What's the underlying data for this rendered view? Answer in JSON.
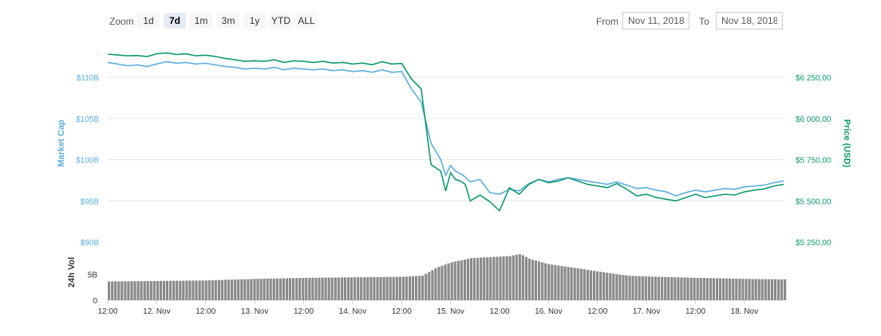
{
  "toolbar": {
    "zoom_label": "Zoom",
    "zoom_options": [
      "1d",
      "7d",
      "1m",
      "3m",
      "1y",
      "YTD",
      "ALL"
    ],
    "active_zoom": "7d",
    "from_label": "From",
    "from_value": "Nov 11, 2018",
    "to_label": "To",
    "to_value": "Nov 18, 2018"
  },
  "colors": {
    "market_cap": "#5aaee0",
    "price": "#0f9a6e",
    "volume": "#8a8a8a"
  },
  "chart_data": [
    {
      "type": "line",
      "x_ticks": [
        "12:00",
        "12. Nov",
        "12:00",
        "13. Nov",
        "12:00",
        "14. Nov",
        "12:00",
        "15. Nov",
        "12:00",
        "16. Nov",
        "12:00",
        "17. Nov",
        "12:00",
        "18. Nov"
      ],
      "left_axis": {
        "label": "Market Cap",
        "ticks": [
          "$110B",
          "$105B",
          "$100B",
          "$95B",
          "$90B"
        ],
        "range": [
          90,
          113
        ]
      },
      "right_axis": {
        "label": "Price (USD)",
        "ticks": [
          "$6 250,00",
          "$6 000,00",
          "$5 750,00",
          "$5 500,00",
          "$5 250,00"
        ],
        "range": [
          5250,
          6380
        ]
      },
      "series": [
        {
          "name": "Market Cap",
          "axis": "left",
          "x": [
            0,
            0.1,
            0.2,
            0.3,
            0.4,
            0.5,
            0.6,
            0.7,
            0.8,
            0.9,
            1.0,
            1.1,
            1.2,
            1.3,
            1.4,
            1.5,
            1.6,
            1.7,
            1.8,
            1.9,
            2.0,
            2.1,
            2.2,
            2.3,
            2.4,
            2.5,
            2.6,
            2.7,
            2.8,
            2.9,
            3.0,
            3.1,
            3.2,
            3.3,
            3.4,
            3.45,
            3.5,
            3.55,
            3.6,
            3.65,
            3.7,
            3.8,
            3.9,
            4.0,
            4.1,
            4.2,
            4.3,
            4.4,
            4.5,
            4.6,
            4.7,
            4.8,
            4.9,
            5.0,
            5.1,
            5.2,
            5.3,
            5.4,
            5.5,
            5.6,
            5.7,
            5.8,
            5.9,
            6.0,
            6.1,
            6.2,
            6.3,
            6.4,
            6.5,
            6.6,
            6.7,
            6.8,
            6.9
          ],
          "values": [
            111.8,
            111.6,
            111.4,
            111.5,
            111.3,
            111.6,
            111.9,
            111.7,
            111.8,
            111.6,
            111.7,
            111.5,
            111.3,
            111.2,
            111.0,
            111.1,
            111.0,
            111.2,
            110.9,
            111.1,
            111.0,
            110.9,
            111.0,
            110.8,
            110.9,
            110.7,
            110.8,
            110.6,
            110.9,
            110.6,
            110.7,
            108.6,
            107.0,
            102.0,
            100.0,
            98.1,
            99.3,
            98.6,
            98.3,
            97.9,
            97.3,
            97.6,
            96.0,
            95.8,
            96.4,
            96.2,
            97.1,
            97.6,
            97.3,
            97.6,
            97.8,
            97.6,
            97.4,
            97.2,
            97.0,
            97.3,
            96.9,
            96.5,
            96.6,
            96.3,
            96.1,
            95.6,
            96.0,
            96.3,
            96.1,
            96.3,
            96.5,
            96.4,
            96.7,
            96.8,
            96.9,
            97.2,
            97.4
          ]
        },
        {
          "name": "Price (USD)",
          "axis": "right",
          "x": [
            0,
            0.1,
            0.2,
            0.3,
            0.4,
            0.5,
            0.6,
            0.7,
            0.8,
            0.9,
            1.0,
            1.1,
            1.2,
            1.3,
            1.4,
            1.5,
            1.6,
            1.7,
            1.8,
            1.9,
            2.0,
            2.1,
            2.2,
            2.3,
            2.4,
            2.5,
            2.6,
            2.7,
            2.8,
            2.9,
            3.0,
            3.1,
            3.2,
            3.3,
            3.4,
            3.45,
            3.5,
            3.55,
            3.6,
            3.65,
            3.7,
            3.8,
            3.9,
            4.0,
            4.1,
            4.2,
            4.3,
            4.4,
            4.5,
            4.6,
            4.7,
            4.8,
            4.9,
            5.0,
            5.1,
            5.2,
            5.3,
            5.4,
            5.5,
            5.6,
            5.7,
            5.8,
            5.9,
            6.0,
            6.1,
            6.2,
            6.3,
            6.4,
            6.5,
            6.6,
            6.7,
            6.8,
            6.9
          ],
          "values": [
            6390,
            6385,
            6380,
            6382,
            6375,
            6392,
            6398,
            6388,
            6392,
            6380,
            6384,
            6376,
            6364,
            6356,
            6346,
            6350,
            6346,
            6356,
            6340,
            6350,
            6346,
            6340,
            6346,
            6336,
            6340,
            6330,
            6336,
            6326,
            6344,
            6330,
            6334,
            6240,
            6180,
            5720,
            5680,
            5560,
            5670,
            5630,
            5620,
            5600,
            5500,
            5535,
            5495,
            5440,
            5580,
            5540,
            5600,
            5630,
            5610,
            5620,
            5640,
            5620,
            5600,
            5590,
            5580,
            5605,
            5570,
            5530,
            5540,
            5520,
            5510,
            5500,
            5520,
            5540,
            5520,
            5530,
            5540,
            5535,
            5555,
            5565,
            5572,
            5590,
            5600
          ]
        }
      ]
    },
    {
      "type": "bar",
      "name": "24h Vol",
      "ylabel": "24h Vol",
      "ticks": [
        "5B",
        "0"
      ],
      "range": [
        0,
        9.5
      ],
      "x": [
        0,
        0.5,
        1.0,
        1.5,
        2.0,
        2.5,
        3.0,
        3.2,
        3.35,
        3.5,
        3.7,
        3.9,
        4.1,
        4.2,
        4.3,
        4.5,
        4.8,
        5.0,
        5.3,
        5.6,
        6.0,
        6.5,
        6.9
      ],
      "values": [
        3.6,
        3.7,
        3.8,
        4.1,
        4.3,
        4.4,
        4.5,
        4.7,
        6.3,
        7.3,
        8.1,
        8.3,
        8.5,
        8.9,
        7.9,
        6.9,
        6.1,
        5.5,
        4.7,
        4.5,
        4.3,
        4.1,
        4.0
      ]
    }
  ]
}
